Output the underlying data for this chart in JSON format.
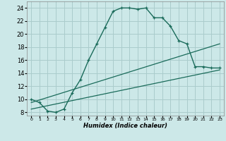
{
  "xlabel": "Humidex (Indice chaleur)",
  "bg_color": "#cce8e8",
  "grid_color": "#aacccc",
  "line_color": "#1a6b5a",
  "xlim": [
    -0.5,
    23.5
  ],
  "ylim": [
    7.5,
    25
  ],
  "xticks": [
    0,
    1,
    2,
    3,
    4,
    5,
    6,
    7,
    8,
    9,
    10,
    11,
    12,
    13,
    14,
    15,
    16,
    17,
    18,
    19,
    20,
    21,
    22,
    23
  ],
  "yticks": [
    8,
    10,
    12,
    14,
    16,
    18,
    20,
    22,
    24
  ],
  "curve_x": [
    0,
    1,
    2,
    3,
    4,
    5,
    6,
    7,
    8,
    9,
    10,
    11,
    12,
    13,
    14,
    15,
    16,
    17,
    18,
    19,
    20,
    21,
    22,
    23
  ],
  "curve_y": [
    10,
    9.5,
    8.2,
    8.0,
    8.5,
    11.0,
    13.0,
    16.0,
    18.5,
    21.0,
    23.5,
    24.0,
    24.0,
    23.8,
    24.0,
    22.5,
    22.5,
    21.2,
    19.0,
    18.5,
    15.0,
    15.0,
    14.8,
    14.8
  ],
  "line1_x": [
    0,
    23
  ],
  "line1_y": [
    8.5,
    14.5
  ],
  "line2_x": [
    0,
    23
  ],
  "line2_y": [
    9.5,
    18.5
  ]
}
